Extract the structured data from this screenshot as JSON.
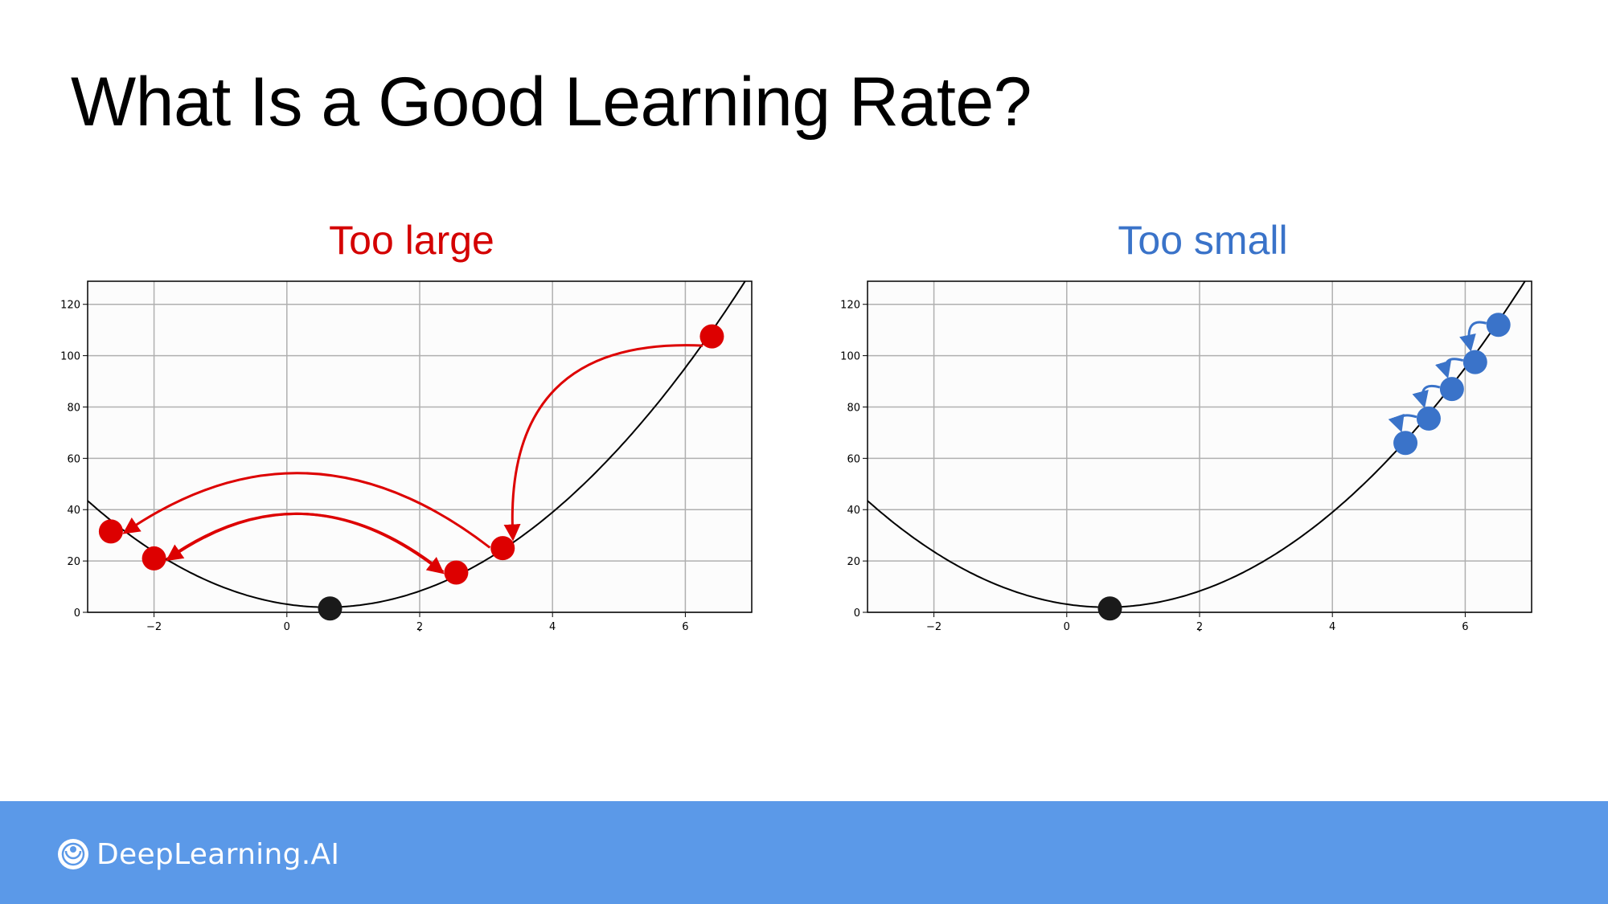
{
  "slide": {
    "title": "What Is a Good Learning Rate?"
  },
  "panels": [
    {
      "title": "Too large",
      "color": "#d40000"
    },
    {
      "title": "Too small",
      "color": "#3a73c9"
    }
  ],
  "chart_data": [
    {
      "type": "line",
      "title": "Too large",
      "curve": "y = 3.2*(x - 0.6)^2 + 2",
      "xlim": [
        -3,
        7
      ],
      "ylim": [
        0,
        129
      ],
      "xticks": [
        -2,
        0,
        2,
        4,
        6
      ],
      "xtick_labels": [
        "−2",
        "0",
        "2",
        "4",
        "6"
      ],
      "yticks": [
        0,
        20,
        40,
        60,
        80,
        100,
        120
      ],
      "ytick_labels": [
        "0",
        "20",
        "40",
        "60",
        "80",
        "100",
        "120"
      ],
      "xlabel": "ˇ",
      "grid": true,
      "minimum_point": {
        "x": 0.65,
        "y": 1.5,
        "color": "#1a1a1a"
      },
      "steps": [
        {
          "x": 6.4,
          "y": 107.5
        },
        {
          "x": 3.25,
          "y": 25
        },
        {
          "x": -2.65,
          "y": 31.5
        },
        {
          "x": 2.55,
          "y": 15.5
        },
        {
          "x": -2.0,
          "y": 21
        }
      ],
      "arrows": [
        [
          0,
          1
        ],
        [
          1,
          2
        ],
        [
          3,
          4
        ],
        [
          4,
          3
        ]
      ],
      "step_color": "#dd0000"
    },
    {
      "type": "line",
      "title": "Too small",
      "curve": "y = 3.2*(x - 0.6)^2 + 2",
      "xlim": [
        -3,
        7
      ],
      "ylim": [
        0,
        129
      ],
      "xticks": [
        -2,
        0,
        2,
        4,
        6
      ],
      "xtick_labels": [
        "−2",
        "0",
        "2",
        "4",
        "6"
      ],
      "yticks": [
        0,
        20,
        40,
        60,
        80,
        100,
        120
      ],
      "ytick_labels": [
        "0",
        "20",
        "40",
        "60",
        "80",
        "100",
        "120"
      ],
      "xlabel": "ˇ",
      "grid": true,
      "minimum_point": {
        "x": 0.65,
        "y": 1.5,
        "color": "#1a1a1a"
      },
      "steps": [
        {
          "x": 6.5,
          "y": 112
        },
        {
          "x": 6.15,
          "y": 97.5
        },
        {
          "x": 5.8,
          "y": 87
        },
        {
          "x": 5.45,
          "y": 75.5
        },
        {
          "x": 5.1,
          "y": 66
        }
      ],
      "arrows": [
        [
          0,
          1
        ],
        [
          1,
          2
        ],
        [
          2,
          3
        ],
        [
          3,
          4
        ]
      ],
      "step_color": "#3a73c9"
    }
  ],
  "footer": {
    "brand": "DeepLearning.AI",
    "background": "#5b99e8",
    "logo_icon": "deeplearning-ai-logo-icon"
  }
}
